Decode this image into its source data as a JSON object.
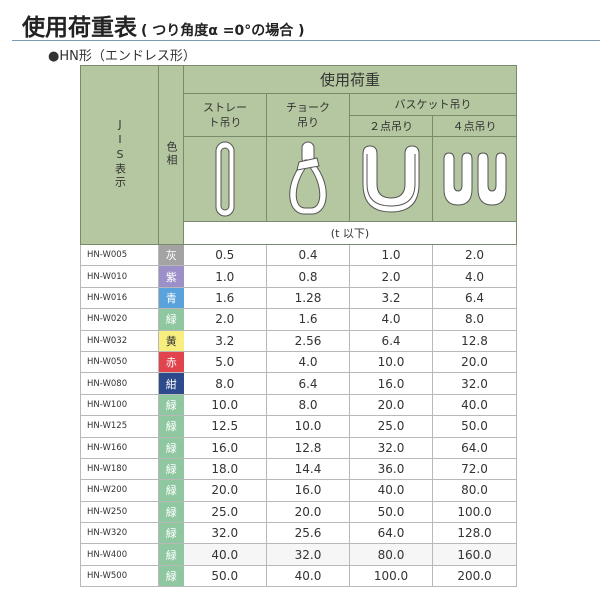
{
  "title": "使用荷重表",
  "title_sub": "( つり角度α =0°の場合 )",
  "subtitle": "●HN形（エンドレス形）",
  "header": {
    "jis": "JIS表示",
    "color": "色相",
    "load": "使用荷重",
    "straight": "ストレート吊り",
    "choke": "チョーク吊り",
    "basket": "バスケット吊り",
    "two_point": "２点吊り",
    "four_point": "４点吊り",
    "unit": "(t 以下)"
  },
  "header_bg": "#b5c7a0",
  "icons": [
    "straight-sling-icon",
    "choke-sling-icon",
    "basket-2point-icon",
    "basket-4point-icon"
  ],
  "rows": [
    {
      "code": "HN-W005",
      "color": "灰",
      "hex": "#a3a3a3",
      "v": [
        "0.5",
        "0.4",
        "1.0",
        "2.0"
      ]
    },
    {
      "code": "HN-W010",
      "color": "紫",
      "hex": "#9d90c8",
      "v": [
        "1.0",
        "0.8",
        "2.0",
        "4.0"
      ]
    },
    {
      "code": "HN-W016",
      "color": "青",
      "hex": "#5aa2dc",
      "v": [
        "1.6",
        "1.28",
        "3.2",
        "6.4"
      ]
    },
    {
      "code": "HN-W020",
      "color": "緑",
      "hex": "#8fc8a0",
      "v": [
        "2.0",
        "1.6",
        "4.0",
        "8.0"
      ]
    },
    {
      "code": "HN-W032",
      "color": "黄",
      "hex": "#f8ee80",
      "v": [
        "3.2",
        "2.56",
        "6.4",
        "12.8"
      ]
    },
    {
      "code": "HN-W050",
      "color": "赤",
      "hex": "#e2444e",
      "v": [
        "5.0",
        "4.0",
        "10.0",
        "20.0"
      ]
    },
    {
      "code": "HN-W080",
      "color": "紺",
      "hex": "#2d4b8c",
      "v": [
        "8.0",
        "6.4",
        "16.0",
        "32.0"
      ]
    },
    {
      "code": "HN-W100",
      "color": "緑",
      "hex": "#8fc8a0",
      "v": [
        "10.0",
        "8.0",
        "20.0",
        "40.0"
      ]
    },
    {
      "code": "HN-W125",
      "color": "緑",
      "hex": "#8fc8a0",
      "v": [
        "12.5",
        "10.0",
        "25.0",
        "50.0"
      ]
    },
    {
      "code": "HN-W160",
      "color": "緑",
      "hex": "#8fc8a0",
      "v": [
        "16.0",
        "12.8",
        "32.0",
        "64.0"
      ]
    },
    {
      "code": "HN-W180",
      "color": "緑",
      "hex": "#8fc8a0",
      "v": [
        "18.0",
        "14.4",
        "36.0",
        "72.0"
      ]
    },
    {
      "code": "HN-W200",
      "color": "緑",
      "hex": "#8fc8a0",
      "v": [
        "20.0",
        "16.0",
        "40.0",
        "80.0"
      ]
    },
    {
      "code": "HN-W250",
      "color": "緑",
      "hex": "#8fc8a0",
      "v": [
        "25.0",
        "20.0",
        "50.0",
        "100.0"
      ]
    },
    {
      "code": "HN-W320",
      "color": "緑",
      "hex": "#8fc8a0",
      "v": [
        "32.0",
        "25.6",
        "64.0",
        "128.0"
      ]
    },
    {
      "code": "HN-W400",
      "color": "緑",
      "hex": "#8fc8a0",
      "v": [
        "40.0",
        "32.0",
        "80.0",
        "160.0"
      ]
    },
    {
      "code": "HN-W500",
      "color": "緑",
      "hex": "#8fc8a0",
      "v": [
        "50.0",
        "40.0",
        "100.0",
        "200.0"
      ]
    }
  ]
}
